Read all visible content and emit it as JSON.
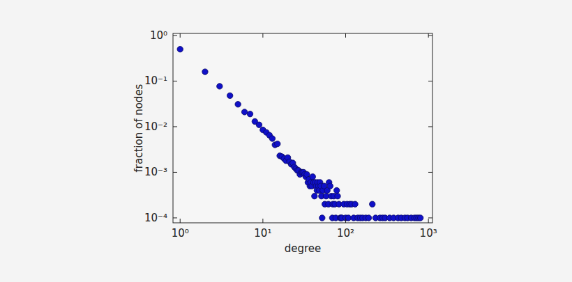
{
  "chart_data": {
    "type": "scatter",
    "x_label": "degree",
    "y_label": "fraction of nodes",
    "log": true,
    "grid": false,
    "marker": "circle",
    "color": "#1010c8",
    "xlim": [
      0.82,
      1120
    ],
    "ylim": [
      7.8e-05,
      1.11
    ],
    "xticks": [
      {
        "value": 1,
        "label": "10⁰"
      },
      {
        "value": 10,
        "label": "10¹"
      },
      {
        "value": 100,
        "label": "10²"
      },
      {
        "value": 1000,
        "label": "10³"
      }
    ],
    "yticks": [
      {
        "value": 0.0001,
        "label": "10⁻⁴"
      },
      {
        "value": 0.001,
        "label": "10⁻³"
      },
      {
        "value": 0.01,
        "label": "10⁻²"
      },
      {
        "value": 0.1,
        "label": "10⁻¹"
      },
      {
        "value": 1,
        "label": "10⁰"
      }
    ],
    "x": [
      1,
      2,
      3,
      4,
      5,
      6,
      7,
      8,
      9,
      10,
      11,
      12,
      13,
      14,
      15,
      16,
      17,
      18,
      19,
      20,
      21,
      22,
      23,
      24,
      25,
      26,
      27,
      28,
      29,
      30,
      31,
      32,
      33,
      34,
      35,
      36,
      37,
      38,
      39,
      40,
      41,
      42,
      43,
      44,
      45,
      46,
      47,
      48,
      49,
      50,
      51,
      52,
      53,
      55,
      56,
      58,
      60,
      62,
      63,
      65,
      67,
      69,
      70,
      72,
      74,
      76,
      78,
      80,
      83,
      86,
      88,
      90,
      95,
      100,
      104,
      108,
      112,
      118,
      125,
      130,
      140,
      150,
      160,
      175,
      190,
      210,
      230,
      260,
      280,
      300,
      340,
      380,
      430,
      470,
      520,
      560,
      620,
      680,
      720,
      760,
      800
    ],
    "values": [
      0.5,
      0.16,
      0.077,
      0.048,
      0.031,
      0.021,
      0.019,
      0.013,
      0.011,
      0.0085,
      0.0075,
      0.0065,
      0.0055,
      0.004,
      0.0042,
      0.0023,
      0.0022,
      0.002,
      0.0018,
      0.0021,
      0.0017,
      0.0015,
      0.0016,
      0.0013,
      0.0012,
      0.0011,
      0.0011,
      0.0009,
      0.001,
      0.001,
      0.001,
      0.0009,
      0.0008,
      0.0009,
      0.0006,
      0.0007,
      0.0005,
      0.0006,
      0.0005,
      0.0008,
      0.0006,
      0.0003,
      0.0006,
      0.0005,
      0.0004,
      0.0006,
      0.0005,
      0.0004,
      0.0006,
      0.0005,
      0.0003,
      0.0001,
      0.0004,
      0.0005,
      0.0002,
      0.0003,
      0.0004,
      0.0002,
      0.0006,
      0.0005,
      0.0003,
      0.0001,
      0.0002,
      0.0003,
      0.0002,
      0.0001,
      0.0004,
      0.0003,
      0.0002,
      0.0001,
      0.0001,
      0.0001,
      0.0002,
      0.0001,
      0.0002,
      0.0001,
      0.0002,
      0.0002,
      0.0001,
      0.0002,
      0.0001,
      0.0001,
      0.0001,
      0.0001,
      0.0001,
      0.0002,
      0.0001,
      0.0001,
      0.0001,
      0.0001,
      0.0001,
      0.0001,
      0.0001,
      0.0001,
      0.0001,
      0.0001,
      0.0001,
      0.0001,
      0.0001,
      0.0001,
      0.0001
    ]
  }
}
